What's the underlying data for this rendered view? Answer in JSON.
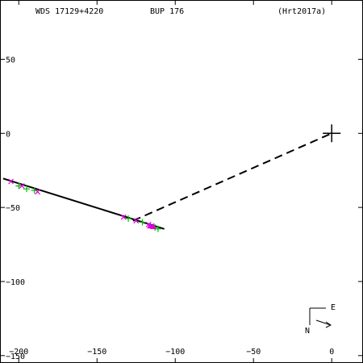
{
  "header": {
    "wds": "WDS 17129+4220",
    "name": "BUP 176",
    "ref": "(Hrt2017a)"
  },
  "compass": {
    "east": "E",
    "north": "N"
  },
  "chart_data": {
    "type": "scatter",
    "xlim": [
      -212,
      20
    ],
    "ylim": [
      -155,
      90
    ],
    "x_ticks": [
      -200,
      -150,
      -100,
      -50,
      0
    ],
    "y_ticks": [
      50,
      0,
      -50,
      -100,
      -150
    ],
    "x_tick_labels": [
      "−200",
      "−150",
      "−100",
      "−50",
      "0"
    ],
    "y_tick_labels": [
      "50",
      "0",
      "−50",
      "−100",
      "−150"
    ],
    "primary": [
      0,
      0
    ],
    "fit_line": [
      [
        -210,
        -30.5
      ],
      [
        -107,
        -64.5
      ]
    ],
    "dashed_line": [
      [
        -127,
        -59
      ],
      [
        0,
        0
      ]
    ],
    "series": [
      {
        "marker": "plus",
        "color": "#00bb00",
        "points": [
          [
            -200,
            -35.5
          ],
          [
            -195,
            -37.5
          ],
          [
            -190,
            -38.5
          ],
          [
            -130,
            -57.5
          ],
          [
            -121,
            -60
          ],
          [
            -113,
            -63.5
          ],
          [
            -111,
            -64.5
          ]
        ]
      },
      {
        "marker": "x",
        "color": "#dd00dd",
        "points": [
          [
            -205,
            -32.5
          ],
          [
            -198,
            -35.5
          ],
          [
            -188,
            -39.5
          ],
          [
            -133,
            -56.5
          ],
          [
            -125,
            -59
          ],
          [
            -117,
            -61.5
          ],
          [
            -115,
            -62.5
          ]
        ]
      },
      {
        "marker": "triangle",
        "color": "#dd00dd",
        "points": [
          [
            -116,
            -62.5
          ],
          [
            -114,
            -63
          ]
        ]
      }
    ]
  }
}
